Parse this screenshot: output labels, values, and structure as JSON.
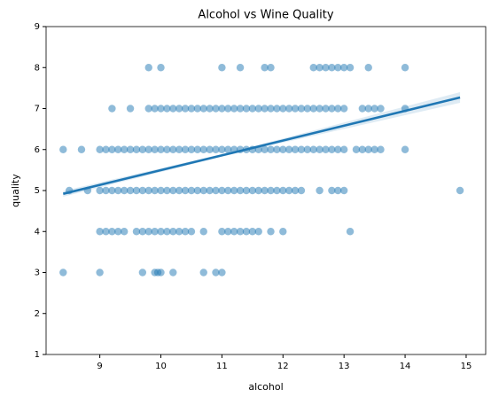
{
  "chart_data": {
    "type": "scatter",
    "title": "Alcohol vs Wine Quality",
    "x_label": "alcohol",
    "y_label": "quality",
    "xlim": [
      8.12,
      15.32
    ],
    "ylim": [
      1,
      9
    ],
    "xticks": [
      9,
      10,
      11,
      12,
      13,
      14,
      15
    ],
    "yticks": [
      1,
      2,
      3,
      4,
      5,
      6,
      7,
      8,
      9
    ],
    "series": [
      {
        "color": "#1f77b4",
        "x": [
          9.8,
          10.0,
          11.0,
          11.3,
          11.7,
          11.8,
          12.5,
          12.6,
          12.7,
          12.8,
          12.9,
          13.0,
          13.1,
          13.4,
          14.0,
          9.2,
          9.5,
          9.8,
          9.9,
          10.0,
          10.1,
          10.2,
          10.3,
          10.4,
          10.5,
          10.6,
          10.7,
          10.8,
          10.9,
          11.0,
          11.1,
          11.2,
          11.3,
          11.4,
          11.5,
          11.6,
          11.7,
          11.8,
          11.9,
          12.0,
          12.1,
          12.2,
          12.3,
          12.4,
          12.5,
          12.6,
          12.7,
          12.8,
          12.9,
          13.0,
          13.3,
          13.4,
          13.5,
          13.6,
          14.0,
          8.4,
          8.7,
          9.0,
          9.1,
          9.2,
          9.3,
          9.4,
          9.5,
          9.6,
          9.7,
          9.8,
          9.9,
          10.0,
          10.1,
          10.2,
          10.3,
          10.4,
          10.5,
          10.6,
          10.7,
          10.8,
          10.9,
          11.0,
          11.1,
          11.2,
          11.3,
          11.4,
          11.5,
          11.6,
          11.7,
          11.8,
          11.9,
          12.0,
          12.1,
          12.2,
          12.3,
          12.4,
          12.5,
          12.6,
          12.7,
          12.8,
          12.9,
          13.0,
          13.2,
          13.3,
          13.4,
          13.5,
          13.6,
          14.0,
          8.5,
          8.8,
          9.0,
          9.1,
          9.2,
          9.3,
          9.4,
          9.5,
          9.6,
          9.7,
          9.8,
          9.9,
          10.0,
          10.1,
          10.2,
          10.3,
          10.4,
          10.5,
          10.6,
          10.7,
          10.8,
          10.9,
          11.0,
          11.1,
          11.2,
          11.3,
          11.4,
          11.5,
          11.6,
          11.7,
          11.8,
          11.9,
          12.0,
          12.1,
          12.2,
          12.3,
          12.6,
          12.8,
          12.9,
          13.0,
          14.9,
          9.0,
          9.1,
          9.2,
          9.3,
          9.4,
          9.6,
          9.7,
          9.8,
          9.9,
          10.0,
          10.1,
          10.2,
          10.3,
          10.4,
          10.5,
          10.7,
          11.0,
          11.1,
          11.2,
          11.3,
          11.4,
          11.5,
          11.6,
          11.8,
          12.0,
          13.1,
          8.4,
          9.0,
          9.7,
          9.9,
          9.95,
          10.0,
          10.2,
          10.7,
          10.9,
          11.0
        ],
        "values": [
          8,
          8,
          8,
          8,
          8,
          8,
          8,
          8,
          8,
          8,
          8,
          8,
          8,
          8,
          8,
          7,
          7,
          7,
          7,
          7,
          7,
          7,
          7,
          7,
          7,
          7,
          7,
          7,
          7,
          7,
          7,
          7,
          7,
          7,
          7,
          7,
          7,
          7,
          7,
          7,
          7,
          7,
          7,
          7,
          7,
          7,
          7,
          7,
          7,
          7,
          7,
          7,
          7,
          7,
          7,
          6,
          6,
          6,
          6,
          6,
          6,
          6,
          6,
          6,
          6,
          6,
          6,
          6,
          6,
          6,
          6,
          6,
          6,
          6,
          6,
          6,
          6,
          6,
          6,
          6,
          6,
          6,
          6,
          6,
          6,
          6,
          6,
          6,
          6,
          6,
          6,
          6,
          6,
          6,
          6,
          6,
          6,
          6,
          6,
          6,
          6,
          6,
          6,
          6,
          5,
          5,
          5,
          5,
          5,
          5,
          5,
          5,
          5,
          5,
          5,
          5,
          5,
          5,
          5,
          5,
          5,
          5,
          5,
          5,
          5,
          5,
          5,
          5,
          5,
          5,
          5,
          5,
          5,
          5,
          5,
          5,
          5,
          5,
          5,
          5,
          5,
          5,
          5,
          5,
          5,
          4,
          4,
          4,
          4,
          4,
          4,
          4,
          4,
          4,
          4,
          4,
          4,
          4,
          4,
          4,
          4,
          4,
          4,
          4,
          4,
          4,
          4,
          4,
          4,
          4,
          4,
          3,
          3,
          3,
          3,
          3,
          3,
          3,
          3,
          3,
          3
        ]
      }
    ],
    "regression": {
      "color": "#1f77b4",
      "x": [
        8.4,
        11.2,
        14.9
      ],
      "values": [
        4.92,
        5.93,
        7.27
      ],
      "ci_lower": [
        4.85,
        5.9,
        7.14
      ],
      "ci_upper": [
        4.99,
        5.96,
        7.4
      ]
    }
  }
}
